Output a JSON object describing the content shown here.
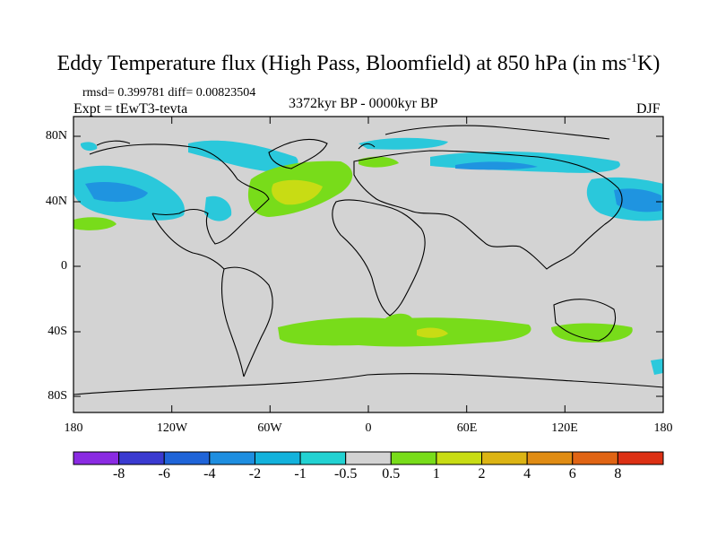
{
  "title": {
    "pre": "Eddy Temperature flux (High Pass, Bloomfield) at 850 hPa (in ms",
    "sup": "-1",
    "post": "K)"
  },
  "stats": "rmsd= 0.399781 diff= 0.00823504",
  "experiment": "Expt = tEwT3-tevta",
  "period": "3372kyr BP - 0000kyr BP",
  "season": "DJF",
  "axes": {
    "lat_labels": [
      "80N",
      "40N",
      "0",
      "40S",
      "80S"
    ],
    "lon_labels": [
      "180",
      "120W",
      "60W",
      "0",
      "60E",
      "120E",
      "180"
    ]
  },
  "colorbar": {
    "labels": [
      "-8",
      "-6",
      "-4",
      "-2",
      "-1",
      "-0.5",
      "0.5",
      "1",
      "2",
      "4",
      "6",
      "8"
    ],
    "colors": [
      "#8a2be2",
      "#3a3ad0",
      "#1f64d8",
      "#1e8ee0",
      "#13b2dc",
      "#22d2d2",
      "#d3d3d3",
      "#78dc1a",
      "#c8dc14",
      "#dcb414",
      "#e08c14",
      "#e06414",
      "#dc3014"
    ]
  },
  "map": {
    "ocean_color": "#d3d3d3",
    "land_outline_color": "#000000"
  }
}
